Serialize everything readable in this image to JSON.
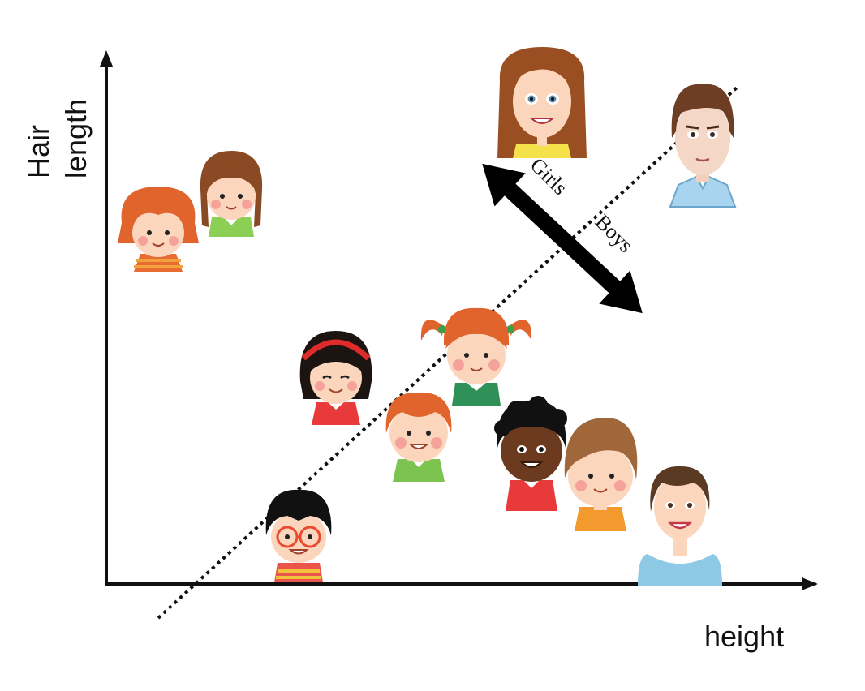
{
  "axes": {
    "x_label": "height",
    "y_label_line1": "Hair",
    "y_label_line2": "length"
  },
  "boundary": {
    "side_a_label": "Girls",
    "side_b_label": "Boys"
  },
  "colors": {
    "axis": "#111111",
    "arrow": "#000000",
    "skin_light": "#fbd6bd",
    "skin_dark": "#6b3a1f",
    "hair_brown": "#8a4a23",
    "hair_orange": "#e0642b",
    "hair_black": "#1a1a1a",
    "blush": "#f28b8b"
  },
  "people": [
    {
      "name": "girl-orange-hair",
      "hair": "orange-long",
      "shirt": "stripes-orange",
      "skin": "light"
    },
    {
      "name": "girl-braids",
      "hair": "brown-braids",
      "shirt": "green",
      "skin": "light"
    },
    {
      "name": "woman-long-brown-hair",
      "hair": "brown-long",
      "shirt": "yellow",
      "skin": "light"
    },
    {
      "name": "man-slicked-hair",
      "hair": "brown-short",
      "shirt": "blue-collar",
      "skin": "light"
    },
    {
      "name": "girl-headband",
      "hair": "black-bob",
      "shirt": "red",
      "skin": "light"
    },
    {
      "name": "girl-pigtails",
      "hair": "orange-pigtails",
      "shirt": "green",
      "skin": "light"
    },
    {
      "name": "boy-orange-hair",
      "hair": "orange-short",
      "shirt": "green",
      "skin": "light"
    },
    {
      "name": "boy-dark-skin",
      "hair": "black-curly",
      "shirt": "red",
      "skin": "dark"
    },
    {
      "name": "boy-brown-hair",
      "hair": "brown-short",
      "shirt": "orange",
      "skin": "light"
    },
    {
      "name": "boy-glasses",
      "hair": "black-short",
      "shirt": "stripes-red",
      "skin": "light"
    },
    {
      "name": "woman-short-hair",
      "hair": "brown-pixie",
      "shirt": "light-blue",
      "skin": "light"
    }
  ]
}
